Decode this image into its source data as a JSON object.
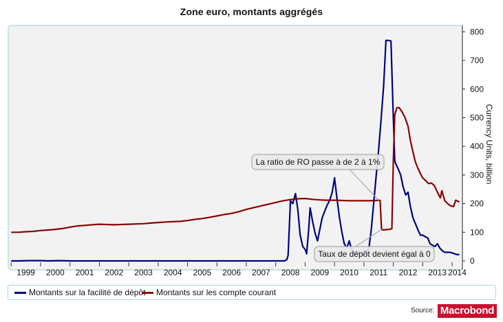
{
  "chart_data": {
    "type": "line",
    "title": "Zone euro, montants aggrégés",
    "ylabel": "Currency Units, billion",
    "ylim": [
      0,
      820
    ],
    "yticks": [
      0,
      100,
      200,
      300,
      400,
      500,
      600,
      700,
      800
    ],
    "xlim": [
      1998.9,
      2014.35
    ],
    "xticks": [
      "1999",
      "2000",
      "2001",
      "2002",
      "2003",
      "2004",
      "2005",
      "2006",
      "2007",
      "2008",
      "2009",
      "2010",
      "2011",
      "2012",
      "2013",
      "2014"
    ],
    "series": [
      {
        "name": "Montants sur la facilité de dépôt",
        "color": "#000080",
        "points": [
          [
            1999.0,
            0
          ],
          [
            1999.3,
            0
          ],
          [
            1999.6,
            1
          ],
          [
            2000.0,
            1
          ],
          [
            2000.3,
            0
          ],
          [
            2000.6,
            1
          ],
          [
            2001.0,
            0
          ],
          [
            2002.0,
            0
          ],
          [
            2003.0,
            0
          ],
          [
            2004.0,
            0
          ],
          [
            2005.0,
            0
          ],
          [
            2006.0,
            0
          ],
          [
            2007.0,
            0
          ],
          [
            2008.0,
            0
          ],
          [
            2008.3,
            0
          ],
          [
            2008.38,
            5
          ],
          [
            2008.42,
            20
          ],
          [
            2008.5,
            210
          ],
          [
            2008.58,
            200
          ],
          [
            2008.67,
            235
          ],
          [
            2008.75,
            180
          ],
          [
            2008.83,
            90
          ],
          [
            2008.92,
            50
          ],
          [
            2009.0,
            40
          ],
          [
            2009.05,
            25
          ],
          [
            2009.12,
            110
          ],
          [
            2009.17,
            185
          ],
          [
            2009.25,
            140
          ],
          [
            2009.33,
            100
          ],
          [
            2009.42,
            70
          ],
          [
            2009.5,
            110
          ],
          [
            2009.58,
            150
          ],
          [
            2009.67,
            175
          ],
          [
            2009.75,
            195
          ],
          [
            2009.83,
            210
          ],
          [
            2009.92,
            240
          ],
          [
            2010.0,
            290
          ],
          [
            2010.08,
            220
          ],
          [
            2010.17,
            150
          ],
          [
            2010.25,
            100
          ],
          [
            2010.33,
            60
          ],
          [
            2010.42,
            45
          ],
          [
            2010.5,
            70
          ],
          [
            2010.58,
            40
          ],
          [
            2010.67,
            30
          ],
          [
            2010.75,
            25
          ],
          [
            2010.83,
            30
          ],
          [
            2010.92,
            25
          ],
          [
            2011.0,
            20
          ],
          [
            2011.08,
            25
          ],
          [
            2011.17,
            45
          ],
          [
            2011.25,
            110
          ],
          [
            2011.33,
            200
          ],
          [
            2011.42,
            300
          ],
          [
            2011.5,
            390
          ],
          [
            2011.58,
            490
          ],
          [
            2011.67,
            610
          ],
          [
            2011.75,
            770
          ],
          [
            2011.83,
            770
          ],
          [
            2011.92,
            768
          ],
          [
            2012.0,
            500
          ],
          [
            2012.05,
            350
          ],
          [
            2012.08,
            340
          ],
          [
            2012.17,
            320
          ],
          [
            2012.25,
            300
          ],
          [
            2012.33,
            260
          ],
          [
            2012.42,
            230
          ],
          [
            2012.5,
            240
          ],
          [
            2012.58,
            190
          ],
          [
            2012.67,
            150
          ],
          [
            2012.75,
            130
          ],
          [
            2012.83,
            110
          ],
          [
            2012.92,
            90
          ],
          [
            2013.0,
            90
          ],
          [
            2013.08,
            85
          ],
          [
            2013.17,
            80
          ],
          [
            2013.25,
            60
          ],
          [
            2013.33,
            55
          ],
          [
            2013.42,
            50
          ],
          [
            2013.5,
            60
          ],
          [
            2013.58,
            45
          ],
          [
            2013.67,
            35
          ],
          [
            2013.75,
            30
          ],
          [
            2013.83,
            30
          ],
          [
            2013.92,
            30
          ],
          [
            2014.0,
            28
          ],
          [
            2014.08,
            25
          ],
          [
            2014.17,
            22
          ],
          [
            2014.25,
            22
          ]
        ]
      },
      {
        "name": "Montants sur les compte courant",
        "color": "#8b0000",
        "points": [
          [
            1999.0,
            100
          ],
          [
            1999.25,
            100
          ],
          [
            1999.5,
            102
          ],
          [
            1999.75,
            103
          ],
          [
            2000.0,
            106
          ],
          [
            2000.25,
            108
          ],
          [
            2000.5,
            110
          ],
          [
            2000.75,
            113
          ],
          [
            2001.0,
            118
          ],
          [
            2001.25,
            122
          ],
          [
            2001.5,
            124
          ],
          [
            2001.75,
            126
          ],
          [
            2002.0,
            128
          ],
          [
            2002.25,
            127
          ],
          [
            2002.5,
            126
          ],
          [
            2002.75,
            127
          ],
          [
            2003.0,
            128
          ],
          [
            2003.25,
            129
          ],
          [
            2003.5,
            130
          ],
          [
            2003.75,
            132
          ],
          [
            2004.0,
            134
          ],
          [
            2004.25,
            136
          ],
          [
            2004.5,
            137
          ],
          [
            2004.75,
            138
          ],
          [
            2005.0,
            141
          ],
          [
            2005.25,
            145
          ],
          [
            2005.5,
            148
          ],
          [
            2005.75,
            152
          ],
          [
            2006.0,
            157
          ],
          [
            2006.25,
            162
          ],
          [
            2006.5,
            166
          ],
          [
            2006.75,
            172
          ],
          [
            2007.0,
            180
          ],
          [
            2007.25,
            186
          ],
          [
            2007.5,
            192
          ],
          [
            2007.75,
            198
          ],
          [
            2008.0,
            204
          ],
          [
            2008.25,
            210
          ],
          [
            2008.5,
            214
          ],
          [
            2008.75,
            217
          ],
          [
            2009.0,
            218
          ],
          [
            2009.25,
            215
          ],
          [
            2009.5,
            213
          ],
          [
            2009.75,
            212
          ],
          [
            2010.0,
            212
          ],
          [
            2010.25,
            211
          ],
          [
            2010.5,
            210
          ],
          [
            2010.75,
            210
          ],
          [
            2011.0,
            210
          ],
          [
            2011.25,
            210
          ],
          [
            2011.42,
            211
          ],
          [
            2011.5,
            212
          ],
          [
            2011.55,
            211
          ],
          [
            2011.6,
            110
          ],
          [
            2011.65,
            108
          ],
          [
            2011.75,
            109
          ],
          [
            2011.85,
            110
          ],
          [
            2011.95,
            112
          ],
          [
            2012.0,
            350
          ],
          [
            2012.05,
            510
          ],
          [
            2012.12,
            535
          ],
          [
            2012.2,
            535
          ],
          [
            2012.3,
            520
          ],
          [
            2012.4,
            500
          ],
          [
            2012.5,
            470
          ],
          [
            2012.58,
            420
          ],
          [
            2012.67,
            380
          ],
          [
            2012.75,
            345
          ],
          [
            2012.83,
            325
          ],
          [
            2012.92,
            305
          ],
          [
            2013.0,
            290
          ],
          [
            2013.1,
            280
          ],
          [
            2013.2,
            270
          ],
          [
            2013.3,
            272
          ],
          [
            2013.4,
            262
          ],
          [
            2013.5,
            240
          ],
          [
            2013.6,
            220
          ],
          [
            2013.65,
            245
          ],
          [
            2013.75,
            210
          ],
          [
            2013.85,
            200
          ],
          [
            2013.95,
            192
          ],
          [
            2014.05,
            190
          ],
          [
            2014.12,
            212
          ],
          [
            2014.2,
            208
          ],
          [
            2014.25,
            206
          ]
        ]
      }
    ],
    "annotations": [
      {
        "text": "La ratio de RO passe à de 2 à 1%",
        "target": [
          2011.5,
          212
        ]
      },
      {
        "text": "Taux de dépôt devient égal à 0",
        "target": [
          2011.6,
          110
        ]
      }
    ]
  },
  "source": {
    "label": "Source:",
    "logo": "Macrobond",
    "logo_color": "#c8102e"
  }
}
